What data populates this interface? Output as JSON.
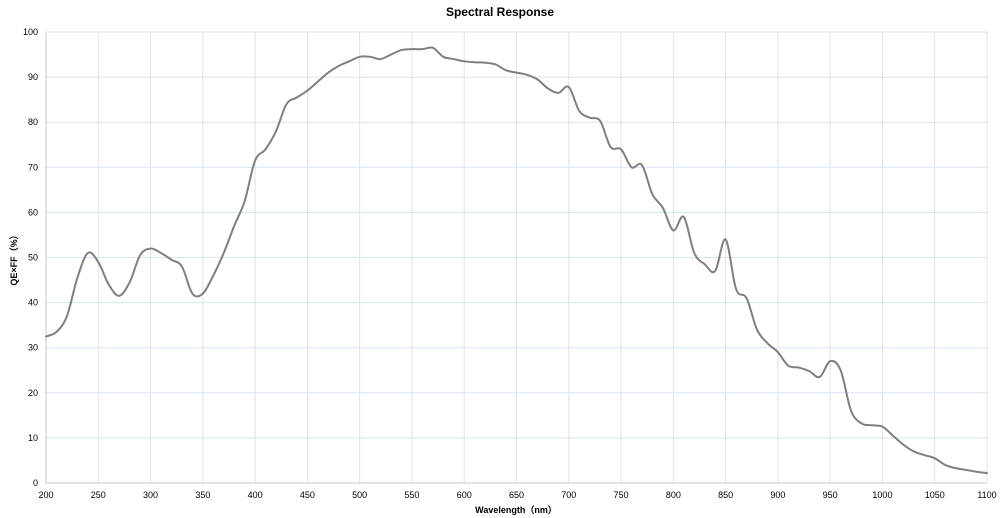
{
  "chart_data": {
    "type": "line",
    "title": "Spectral Response",
    "xlabel": "Wavelength（nm）",
    "ylabel": "QE×FF（%）",
    "xlim": [
      200,
      1100
    ],
    "ylim": [
      0,
      100
    ],
    "x_ticks": [
      "200",
      "250",
      "300",
      "350",
      "400",
      "450",
      "500",
      "550",
      "600",
      "650",
      "700",
      "750",
      "800",
      "850",
      "900",
      "950",
      "1000",
      "1050",
      "1100"
    ],
    "y_ticks": [
      "0",
      "10",
      "20",
      "30",
      "40",
      "50",
      "60",
      "70",
      "80",
      "90",
      "100"
    ],
    "grid": true,
    "colors": {
      "line": "#7f7f7f",
      "grid": "#d9e4ef"
    },
    "series": [
      {
        "x": [
          200,
          210,
          220,
          230,
          240,
          250,
          260,
          270,
          280,
          290,
          300,
          310,
          320,
          330,
          340,
          350,
          360,
          370,
          380,
          390,
          400,
          410,
          420,
          430,
          440,
          450,
          460,
          470,
          480,
          490,
          500,
          510,
          520,
          530,
          540,
          550,
          560,
          570,
          580,
          590,
          600,
          610,
          620,
          630,
          640,
          650,
          660,
          670,
          680,
          690,
          700,
          710,
          720,
          730,
          740,
          750,
          760,
          770,
          780,
          790,
          800,
          810,
          820,
          830,
          840,
          850,
          860,
          870,
          880,
          890,
          900,
          910,
          920,
          930,
          940,
          950,
          960,
          970,
          980,
          990,
          1000,
          1010,
          1020,
          1030,
          1040,
          1050,
          1060,
          1070,
          1080,
          1090,
          1100
        ],
        "values": [
          32.5,
          33.5,
          37,
          45.5,
          51,
          49,
          44,
          41.5,
          44.5,
          50.5,
          52,
          51,
          49.5,
          48,
          42,
          42,
          46,
          51,
          57,
          62.5,
          71.5,
          74,
          78,
          84,
          85.5,
          87,
          89,
          91,
          92.5,
          93.5,
          94.5,
          94.5,
          94,
          95,
          96,
          96.2,
          96.2,
          96.5,
          94.5,
          94,
          93.5,
          93.3,
          93.2,
          92.8,
          91.5,
          91,
          90.5,
          89.5,
          87.5,
          86.5,
          87.8,
          82.5,
          81,
          80.3,
          74.5,
          74,
          70,
          70.5,
          64,
          61,
          56,
          59,
          51,
          48.5,
          47,
          54,
          43,
          41,
          34,
          31,
          29,
          26,
          25.6,
          24.8,
          23.5,
          27,
          25,
          16,
          13.2,
          12.8,
          12.5,
          10.5,
          8.5,
          7,
          6.2,
          5.5,
          4,
          3.3,
          2.9,
          2.5,
          2.2
        ]
      }
    ]
  }
}
